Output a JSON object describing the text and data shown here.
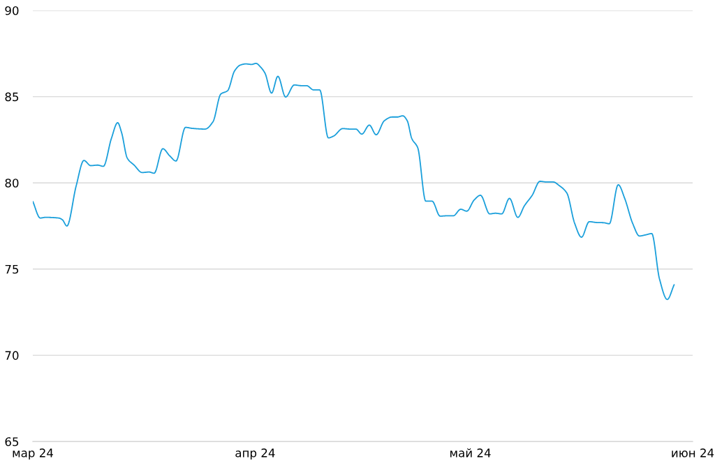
{
  "chart_data": {
    "type": "line",
    "x": [
      "2024-03-01T00:00",
      "2024-03-02T01:00",
      "2024-03-02T18:00",
      "2024-03-04T15:00",
      "2024-03-05T03:00",
      "2024-03-05T18:00",
      "2024-03-07T01:00",
      "2024-03-08T03:00",
      "2024-03-09T02:00",
      "2024-03-10T01:00",
      "2024-03-10T20:00",
      "2024-03-11T23:00",
      "2024-03-12T20:00",
      "2024-03-13T09:00",
      "2024-03-14T04:00",
      "2024-03-15T03:00",
      "2024-03-16T06:00",
      "2024-03-17T05:00",
      "2024-03-17T22:00",
      "2024-03-19T03:00",
      "2024-03-20T02:00",
      "2024-03-20T23:00",
      "2024-03-22T07:00",
      "2024-03-23T06:00",
      "2024-03-25T00:00",
      "2024-03-26T03:00",
      "2024-03-27T05:00",
      "2024-03-28T04:00",
      "2024-03-29T03:00",
      "2024-03-29T22:00",
      "2024-03-30T17:00",
      "2024-03-31T12:00",
      "2024-04-01T03:00",
      "2024-04-01T18:00",
      "2024-04-02T09:00",
      "2024-04-03T07:00",
      "2024-04-04T04:00",
      "2024-04-05T06:00",
      "2024-04-06T11:00",
      "2024-04-07T09:00",
      "2024-04-08T04:00",
      "2024-04-09T04:00",
      "2024-04-10T00:00",
      "2024-04-11T05:00",
      "2024-04-11T23:00",
      "2024-04-13T05:00",
      "2024-04-14T06:00",
      "2024-04-15T01:00",
      "2024-04-15T21:00",
      "2024-04-16T22:00",
      "2024-04-17T21:00",
      "2024-04-19T00:00",
      "2024-04-20T02:00",
      "2024-04-20T20:00",
      "2024-04-21T14:00",
      "2024-04-22T05:00",
      "2024-04-22T20:00",
      "2024-04-23T16:00",
      "2024-04-24T19:00",
      "2024-04-25T16:00",
      "2024-04-26T19:00",
      "2024-04-27T17:00",
      "2024-04-28T15:00",
      "2024-04-29T16:00",
      "2024-04-30T12:00",
      "2024-05-01T13:00",
      "2024-05-02T10:00",
      "2024-05-03T17:00",
      "2024-05-04T12:00",
      "2024-05-05T09:00",
      "2024-05-06T11:00",
      "2024-05-07T15:00",
      "2024-05-08T13:00",
      "2024-05-09T15:00",
      "2024-05-10T17:00",
      "2024-05-11T16:00",
      "2024-05-12T14:00",
      "2024-05-13T09:00",
      "2024-05-14T11:00",
      "2024-05-15T13:00",
      "2024-05-16T12:00",
      "2024-05-17T14:00",
      "2024-05-18T16:00",
      "2024-05-19T14:00",
      "2024-05-20T09:00",
      "2024-05-21T15:00",
      "2024-05-22T13:00",
      "2024-05-23T15:00",
      "2024-05-24T14:00",
      "2024-05-25T12:00",
      "2024-05-26T07:00",
      "2024-05-27T09:00",
      "2024-05-28T11:00",
      "2024-05-29T10:00"
    ],
    "series": [
      {
        "color": "#1a9fdb",
        "values": [
          78.92,
          77.96,
          78.0,
          77.96,
          77.86,
          77.5,
          79.82,
          81.3,
          81.0,
          81.03,
          80.96,
          82.58,
          83.49,
          82.92,
          81.44,
          81.03,
          80.6,
          80.63,
          80.56,
          81.98,
          81.57,
          81.27,
          83.22,
          83.16,
          83.12,
          83.55,
          85.15,
          85.35,
          86.49,
          86.83,
          86.9,
          86.87,
          86.93,
          86.72,
          86.36,
          85.21,
          86.18,
          84.98,
          85.68,
          85.64,
          85.64,
          85.39,
          85.39,
          82.61,
          82.72,
          83.15,
          83.12,
          83.12,
          82.83,
          83.35,
          82.79,
          83.6,
          83.82,
          83.82,
          83.89,
          83.6,
          82.58,
          82.04,
          78.94,
          78.94,
          78.07,
          78.09,
          78.09,
          78.47,
          78.36,
          79.01,
          79.28,
          78.2,
          78.24,
          78.2,
          79.1,
          78.0,
          78.67,
          79.28,
          80.09,
          80.05,
          80.05,
          79.85,
          79.41,
          77.66,
          76.85,
          77.75,
          77.7,
          77.69,
          77.63,
          79.89,
          79.08,
          77.66,
          76.92,
          76.99,
          77.06,
          74.43,
          73.24,
          74.09
        ]
      }
    ],
    "xlim": [
      "2024-03-01",
      "2024-06-01"
    ],
    "xticks": [
      {
        "value": "2024-03-01",
        "label": "мар 24"
      },
      {
        "value": "2024-04-01",
        "label": "апр 24"
      },
      {
        "value": "2024-05-01",
        "label": "май 24"
      },
      {
        "value": "2024-06-01",
        "label": "июн 24"
      }
    ],
    "ylim": [
      65,
      90
    ],
    "yticks": [
      65,
      70,
      75,
      80,
      85,
      90
    ],
    "grid": "y",
    "line_style": "solid"
  }
}
